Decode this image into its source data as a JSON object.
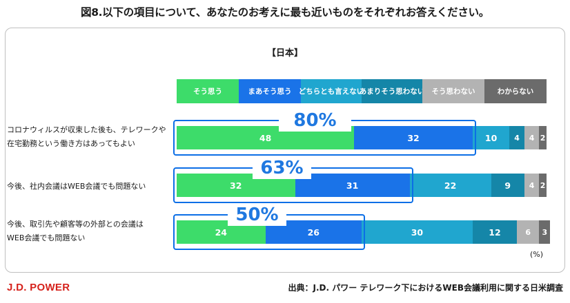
{
  "title": "図8.以下の項目について、あなたのお考えに最も近いものをそれぞれお答えください。",
  "chart_data": {
    "type": "bar",
    "orientation": "horizontal",
    "stacked": true,
    "subtitle": "【日本】",
    "unit": "(%)",
    "categories": [
      [
        "コロナウィルスが収束した後も、テレワークや",
        "在宅勤務という働き方はあってもよい"
      ],
      [
        "今後、社内会議はWEB会議でも問題ない"
      ],
      [
        "今後、取引先や顧客等の外部との会議は",
        "WEB会議でも問題ない"
      ]
    ],
    "series": [
      {
        "name": "そう思う",
        "color": "#3ddc6a",
        "values": [
          48,
          32,
          24
        ]
      },
      {
        "name": "まあそう思う",
        "color": "#1a73e8",
        "values": [
          32,
          31,
          26
        ]
      },
      {
        "name": "どちらとも言えない",
        "color": "#20a6cf",
        "values": [
          10,
          22,
          30
        ]
      },
      {
        "name": "あまりそう思わない",
        "color": "#1586a8",
        "values": [
          4,
          9,
          12
        ]
      },
      {
        "name": "そう思わない",
        "color": "#b3b3b3",
        "values": [
          4,
          4,
          6
        ]
      },
      {
        "name": "わからない",
        "color": "#6b6b6b",
        "values": [
          2,
          2,
          3
        ]
      }
    ],
    "highlight_totals": [
      "80%",
      "63%",
      "50%"
    ],
    "xlim": [
      0,
      100
    ],
    "legend": "top",
    "grid": false
  },
  "footer": {
    "brand": "J.D. POWER",
    "source": "出典：J.D. パワー テレワーク下におけるWEB会議利用に関する日米調査"
  }
}
